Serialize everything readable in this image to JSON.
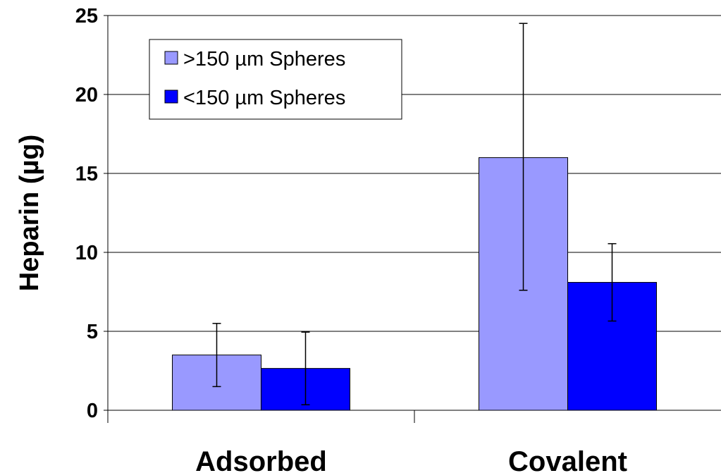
{
  "chart_data": {
    "type": "bar",
    "title": "",
    "xlabel": "",
    "ylabel": "Heparin (µg)",
    "categories": [
      "Adsorbed",
      "Covalent"
    ],
    "series": [
      {
        "name": ">150 µm Spheres",
        "color": "#9999ff",
        "values": [
          3.5,
          16.0
        ],
        "error_low": [
          1.5,
          7.6
        ],
        "error_high": [
          5.5,
          24.5
        ]
      },
      {
        "name": "<150 µm Spheres",
        "color": "#0000ff",
        "values": [
          2.65,
          8.1
        ],
        "error_low": [
          0.35,
          5.65
        ],
        "error_high": [
          4.95,
          10.55
        ]
      }
    ],
    "ylim": [
      0,
      25
    ],
    "yticks": [
      "0",
      "5",
      "10",
      "15",
      "20",
      "25"
    ],
    "gridlines": true,
    "legend_position": "top-left"
  }
}
